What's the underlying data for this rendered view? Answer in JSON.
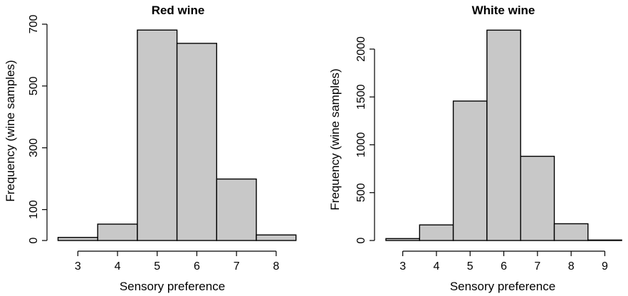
{
  "chart_data": [
    {
      "type": "bar",
      "title": "Red wine",
      "xlabel": "Sensory preference",
      "ylabel": "Frequency (wine samples)",
      "categories": [
        "3",
        "4",
        "5",
        "6",
        "7",
        "8"
      ],
      "values": [
        10,
        53,
        681,
        638,
        199,
        18
      ],
      "xticks": [
        "3",
        "4",
        "5",
        "6",
        "7",
        "8"
      ],
      "yticks": [
        "0",
        "100",
        "300",
        "500",
        "700"
      ],
      "ylim": [
        0,
        700
      ],
      "grid": false
    },
    {
      "type": "bar",
      "title": "White wine",
      "xlabel": "Sensory preference",
      "ylabel": "Frequency (wine samples)",
      "categories": [
        "3",
        "4",
        "5",
        "6",
        "7",
        "8",
        "9"
      ],
      "values": [
        20,
        163,
        1457,
        2198,
        880,
        175,
        5
      ],
      "xticks": [
        "3",
        "4",
        "5",
        "6",
        "7",
        "8",
        "9"
      ],
      "yticks": [
        "0",
        "500",
        "1000",
        "1500",
        "2000"
      ],
      "ylim": [
        0,
        2200
      ],
      "grid": false
    }
  ]
}
